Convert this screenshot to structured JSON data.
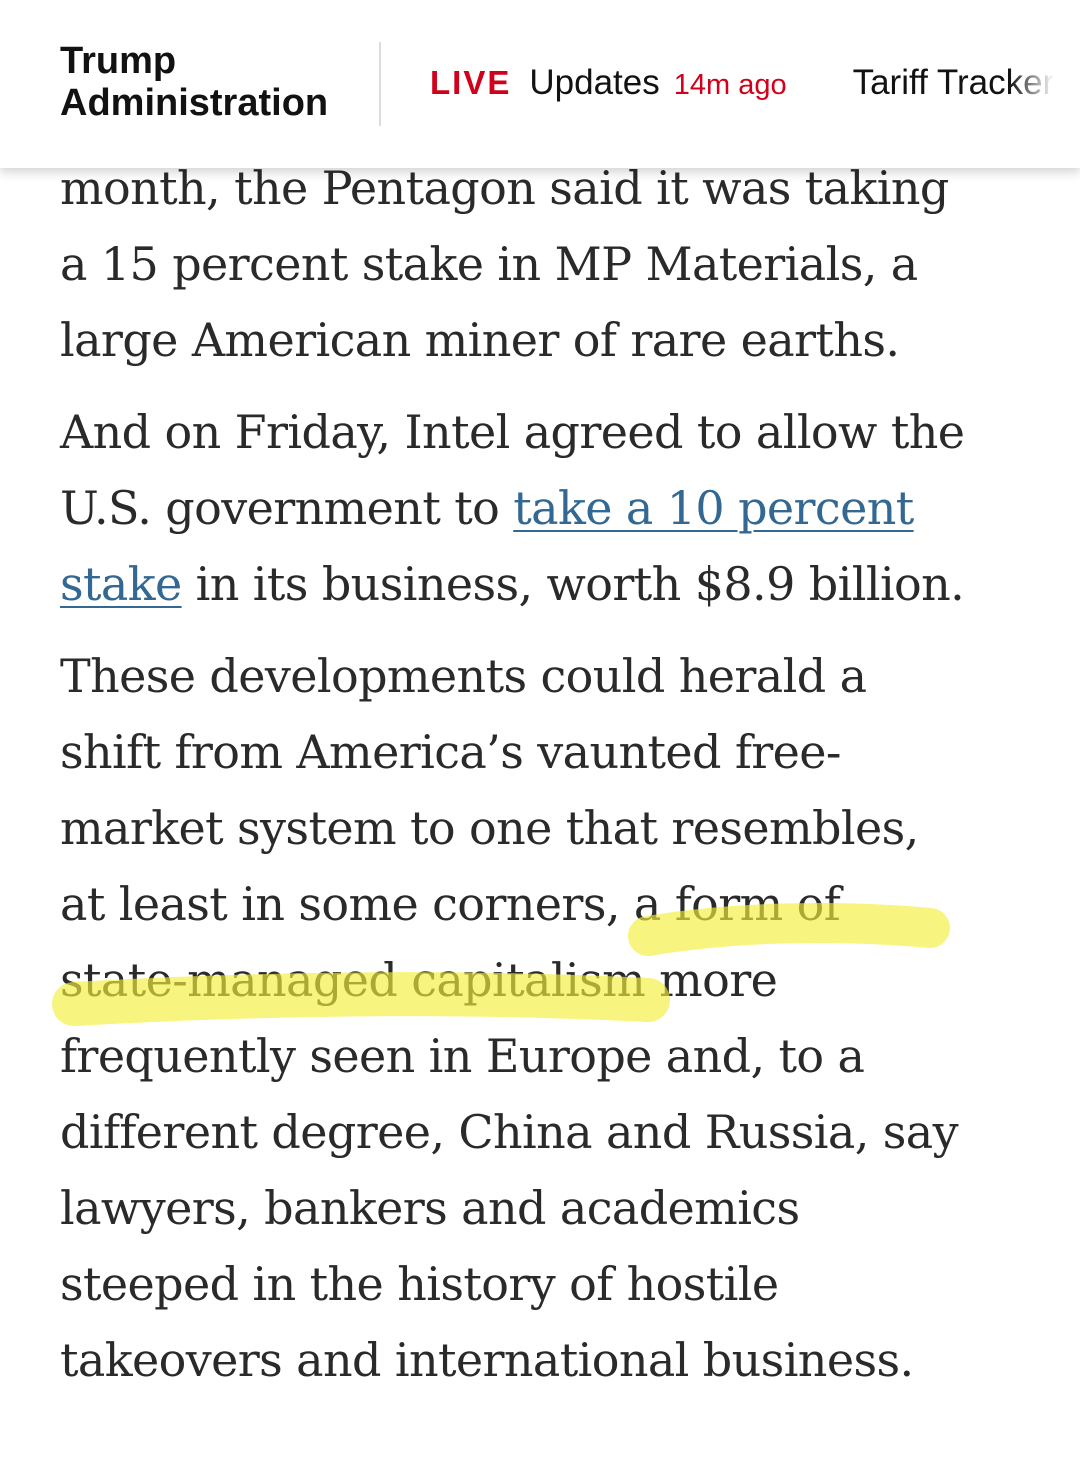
{
  "header": {
    "section_title_line1": "Trump",
    "section_title_line2": "Administration",
    "live_label": "LIVE",
    "updates_label": "Updates",
    "updated_ago": "14m ago",
    "tracker_label": "Tariff Tracker"
  },
  "article": {
    "p1": {
      "line1": "month, the Pentagon said it was taking",
      "line2": "a 15 percent stake in MP Materials, a",
      "line3": "large American miner of rare earths."
    },
    "p2": {
      "line1": "And on Friday, Intel agreed to allow the",
      "line2_pre": "U.S. government to ",
      "link_part1": "take a 10 percent",
      "link_part2": "stake",
      "line3_post": " in its business, worth $8.9 billion."
    },
    "p3": {
      "line1": "These developments could herald a",
      "line2": "shift from America’s vaunted free-",
      "line3": "market system to one that resembles,",
      "line4_pre": "at least in some corners, ",
      "highlight_part1": "a form of",
      "highlight_part2": "state-managed capitalism",
      "line5_post": " more",
      "line6": "frequently seen in Europe and, to a",
      "line7": "different degree, China and Russia, say",
      "line8": "lawyers, bankers and academics",
      "line9": "steeped in the history of hostile",
      "line10": "takeovers and international business."
    }
  },
  "colors": {
    "live_red": "#d0021b",
    "link_blue": "#326891",
    "highlight_yellow": "#f2ee3a",
    "body_text": "#2a2a2a"
  }
}
